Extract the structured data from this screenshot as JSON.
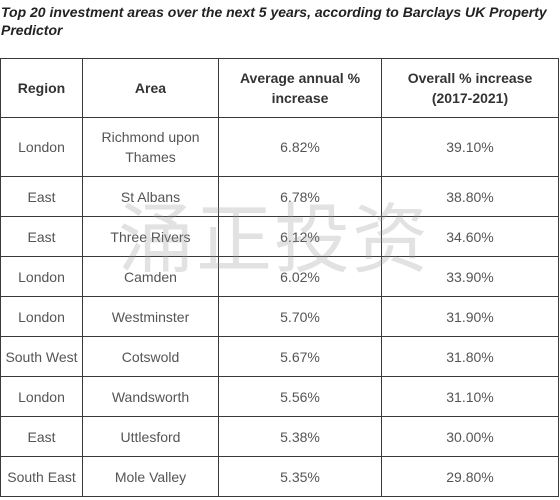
{
  "caption": "Top 20 investment areas over the next 5 years, according to Barclays UK Property Predictor",
  "table": {
    "headers": {
      "region": "Region",
      "area": "Area",
      "avg": "Average annual % increase",
      "overall": "Overall % increase (2017-2021)"
    },
    "rows": [
      {
        "region": "London",
        "area": "Richmond upon Thames",
        "avg": "6.82%",
        "overall": "39.10%"
      },
      {
        "region": "East",
        "area": "St Albans",
        "avg": "6.78%",
        "overall": "38.80%"
      },
      {
        "region": "East",
        "area": "Three Rivers",
        "avg": "6.12%",
        "overall": "34.60%"
      },
      {
        "region": "London",
        "area": "Camden",
        "avg": "6.02%",
        "overall": "33.90%"
      },
      {
        "region": "London",
        "area": "Westminster",
        "avg": "5.70%",
        "overall": "31.90%"
      },
      {
        "region": "South West",
        "area": "Cotswold",
        "avg": "5.67%",
        "overall": "31.80%"
      },
      {
        "region": "London",
        "area": "Wandsworth",
        "avg": "5.56%",
        "overall": "31.10%"
      },
      {
        "region": "East",
        "area": "Uttlesford",
        "avg": "5.38%",
        "overall": "30.00%"
      },
      {
        "region": "South East",
        "area": "Mole Valley",
        "avg": "5.35%",
        "overall": "29.80%"
      }
    ]
  },
  "watermark": "涌正投资"
}
